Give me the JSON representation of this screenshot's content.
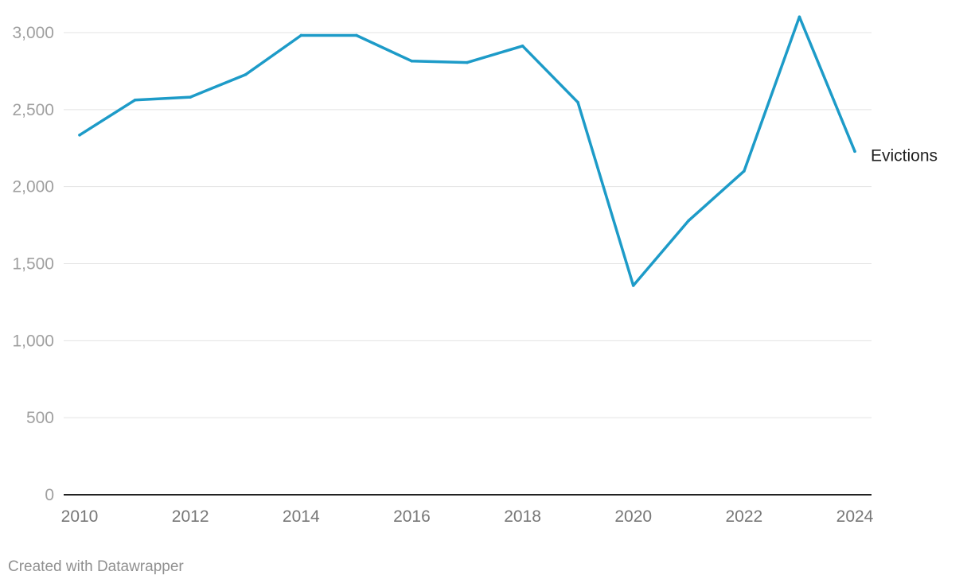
{
  "chart_data": {
    "type": "line",
    "x": [
      2010,
      2011,
      2012,
      2013,
      2014,
      2015,
      2016,
      2017,
      2018,
      2019,
      2020,
      2021,
      2022,
      2023,
      2024
    ],
    "x_tick_labels": [
      "2010",
      "2012",
      "2014",
      "2016",
      "2018",
      "2020",
      "2022",
      "2024"
    ],
    "x_ticks": [
      2010,
      2012,
      2014,
      2016,
      2018,
      2020,
      2022,
      2024
    ],
    "y_ticks": [
      0,
      500,
      1000,
      1500,
      2000,
      2500,
      3000
    ],
    "y_tick_labels": [
      "0",
      "500",
      "1,000",
      "1,500",
      "2,000",
      "2,500",
      "3,000"
    ],
    "ylim": [
      0,
      3000
    ],
    "xlim": [
      2010,
      2024
    ],
    "grid": true,
    "series": [
      {
        "name": "Evictions",
        "color": "#1d9bc8",
        "values": [
          2335,
          2562,
          2581,
          2728,
          2982,
          2982,
          2815,
          2806,
          2913,
          2547,
          1358,
          1780,
          2101,
          3102,
          2229
        ]
      }
    ]
  },
  "footer": "Created with Datawrapper"
}
